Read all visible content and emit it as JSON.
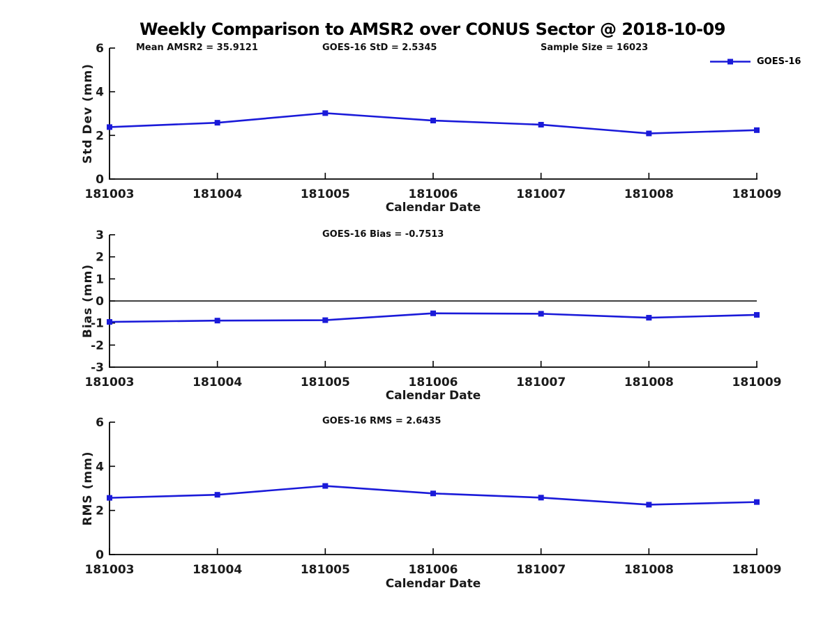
{
  "figure_title": "Weekly Comparison to AMSR2 over CONUS Sector @ 2018-10-09",
  "colors": {
    "series": "#1a1ad9",
    "axis": "#000000",
    "tick_text": "#1a1a1a"
  },
  "legend": {
    "label": "GOES-16"
  },
  "chart_data": [
    {
      "type": "line",
      "title": "",
      "xlabel": "Calendar Date",
      "ylabel": "Std Dev (mm)",
      "categories": [
        "181003",
        "181004",
        "181005",
        "181006",
        "181007",
        "181008",
        "181009"
      ],
      "series": [
        {
          "name": "GOES-16",
          "values": [
            2.38,
            2.58,
            3.02,
            2.68,
            2.49,
            2.09,
            2.24
          ]
        }
      ],
      "ylim": [
        0,
        6
      ],
      "yticks": [
        0,
        2,
        4,
        6
      ],
      "grid": false,
      "zero_line": false,
      "legend_position": "top-right",
      "annotations": [
        "Mean AMSR2 = 35.9121",
        "GOES-16 StD = 2.5345",
        "Sample Size = 16023"
      ]
    },
    {
      "type": "line",
      "title": "",
      "xlabel": "Calendar Date",
      "ylabel": "Bias (mm)",
      "categories": [
        "181003",
        "181004",
        "181005",
        "181006",
        "181007",
        "181008",
        "181009"
      ],
      "series": [
        {
          "name": "GOES-16",
          "values": [
            -0.95,
            -0.89,
            -0.87,
            -0.56,
            -0.58,
            -0.76,
            -0.63
          ]
        }
      ],
      "ylim": [
        -3,
        3
      ],
      "yticks": [
        -3,
        -2,
        -1,
        0,
        1,
        2,
        3
      ],
      "grid": false,
      "zero_line": true,
      "legend_position": "none",
      "annotations": [
        "GOES-16 Bias  = -0.7513"
      ]
    },
    {
      "type": "line",
      "title": "",
      "xlabel": "Calendar Date",
      "ylabel": "RMS (mm)",
      "categories": [
        "181003",
        "181004",
        "181005",
        "181006",
        "181007",
        "181008",
        "181009"
      ],
      "series": [
        {
          "name": "GOES-16",
          "values": [
            2.57,
            2.71,
            3.11,
            2.77,
            2.58,
            2.26,
            2.38
          ]
        }
      ],
      "ylim": [
        0,
        6
      ],
      "yticks": [
        0,
        2,
        4,
        6
      ],
      "grid": false,
      "zero_line": false,
      "legend_position": "none",
      "annotations": [
        "GOES-16 RMS = 2.6435"
      ]
    }
  ]
}
